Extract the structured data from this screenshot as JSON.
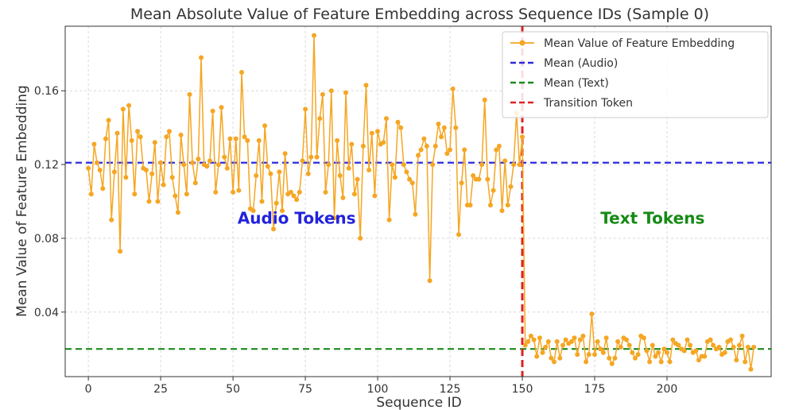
{
  "chart_data": {
    "type": "line",
    "title": "Mean Absolute Value of Feature Embedding across Sequence IDs (Sample 0)",
    "xlabel": "Sequence ID",
    "ylabel": "Mean Value of Feature Embedding",
    "xlim": [
      -8,
      236
    ],
    "ylim": [
      0.005,
      0.195
    ],
    "xticks": [
      0,
      25,
      50,
      75,
      100,
      125,
      150,
      175,
      200
    ],
    "yticks": [
      0.04,
      0.08,
      0.12,
      0.16
    ],
    "xtick_labels": [
      "0",
      "25",
      "50",
      "75",
      "100",
      "125",
      "150",
      "175",
      "200"
    ],
    "ytick_labels": [
      "0.04",
      "0.08",
      "0.12",
      "0.16"
    ],
    "grid": true,
    "legend_position": "top-right",
    "series": [
      {
        "name": "Mean Value of Feature Embedding",
        "color": "#f5a623",
        "x_start": 0,
        "values": [
          0.118,
          0.104,
          0.131,
          0.121,
          0.117,
          0.107,
          0.134,
          0.144,
          0.09,
          0.116,
          0.137,
          0.073,
          0.15,
          0.113,
          0.152,
          0.133,
          0.104,
          0.138,
          0.135,
          0.118,
          0.117,
          0.1,
          0.115,
          0.132,
          0.1,
          0.121,
          0.109,
          0.135,
          0.138,
          0.113,
          0.103,
          0.094,
          0.136,
          0.12,
          0.104,
          0.158,
          0.121,
          0.11,
          0.123,
          0.178,
          0.12,
          0.119,
          0.122,
          0.149,
          0.105,
          0.12,
          0.151,
          0.124,
          0.118,
          0.134,
          0.105,
          0.134,
          0.106,
          0.17,
          0.135,
          0.133,
          0.096,
          0.095,
          0.114,
          0.133,
          0.1,
          0.141,
          0.119,
          0.115,
          0.085,
          0.099,
          0.116,
          0.095,
          0.126,
          0.104,
          0.105,
          0.103,
          0.101,
          0.105,
          0.122,
          0.15,
          0.115,
          0.124,
          0.19,
          0.124,
          0.145,
          0.158,
          0.105,
          0.12,
          0.16,
          0.091,
          0.133,
          0.114,
          0.102,
          0.159,
          0.118,
          0.131,
          0.104,
          0.112,
          0.08,
          0.13,
          0.163,
          0.117,
          0.137,
          0.103,
          0.138,
          0.131,
          0.132,
          0.145,
          0.09,
          0.12,
          0.113,
          0.143,
          0.14,
          0.12,
          0.116,
          0.112,
          0.11,
          0.093,
          0.125,
          0.128,
          0.134,
          0.13,
          0.057,
          0.12,
          0.13,
          0.142,
          0.135,
          0.14,
          0.126,
          0.128,
          0.161,
          0.14,
          0.082,
          0.11,
          0.128,
          0.098,
          0.098,
          0.114,
          0.112,
          0.112,
          0.12,
          0.155,
          0.112,
          0.098,
          0.106,
          0.128,
          0.13,
          0.095,
          0.122,
          0.098,
          0.108,
          0.12,
          0.148,
          0.12,
          0.135,
          0.022,
          0.024,
          0.027,
          0.025,
          0.016,
          0.026,
          0.018,
          0.021,
          0.024,
          0.015,
          0.013,
          0.024,
          0.015,
          0.022,
          0.025,
          0.023,
          0.024,
          0.026,
          0.017,
          0.025,
          0.027,
          0.013,
          0.017,
          0.039,
          0.017,
          0.024,
          0.02,
          0.018,
          0.026,
          0.015,
          0.012,
          0.015,
          0.024,
          0.021,
          0.026,
          0.025,
          0.022,
          0.018,
          0.015,
          0.017,
          0.027,
          0.026,
          0.019,
          0.013,
          0.022,
          0.016,
          0.018,
          0.013,
          0.02,
          0.018,
          0.013,
          0.025,
          0.023,
          0.022,
          0.02,
          0.019,
          0.025,
          0.022,
          0.018,
          0.019,
          0.014,
          0.016,
          0.016,
          0.024,
          0.025,
          0.022,
          0.02,
          0.021,
          0.017,
          0.018,
          0.024,
          0.025,
          0.021,
          0.014,
          0.022,
          0.027,
          0.013,
          0.021,
          0.009,
          0.021
        ]
      }
    ],
    "reference_lines": [
      {
        "name": "Mean (Audio)",
        "orientation": "horizontal",
        "value": 0.121,
        "color": "#2b2be0",
        "style": "dashed"
      },
      {
        "name": "Mean (Text)",
        "orientation": "horizontal",
        "value": 0.02,
        "color": "#1a8a1a",
        "style": "dashed"
      },
      {
        "name": "Transition Token",
        "orientation": "vertical",
        "value": 150,
        "color": "#e02020",
        "style": "dashed"
      }
    ],
    "annotations": [
      {
        "text": "Audio Tokens",
        "x": 72,
        "y": 0.088,
        "color": "#2222dd"
      },
      {
        "text": "Text Tokens",
        "x": 195,
        "y": 0.088,
        "color": "#168a16"
      }
    ]
  }
}
